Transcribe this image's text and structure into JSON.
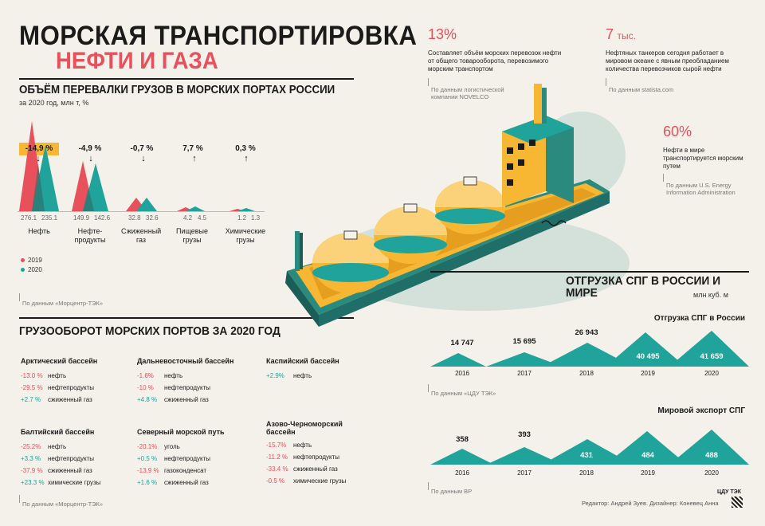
{
  "title": "МОРСКАЯ ТРАНСПОРТИРОВКА",
  "subtitle": "НЕФТИ И ГАЗА",
  "ports": {
    "heading": "ОБЪЁМ ПЕРЕВАЛКИ ГРУЗОВ В МОРСКИХ ПОРТАХ РОССИИ",
    "note": "за 2020 год, млн т, %",
    "groups": [
      {
        "name": "Нефть",
        "change": "-14,9 %",
        "arrow": "↓",
        "v2019": "276.1",
        "v2020": "235.1"
      },
      {
        "name": "Нефте-продукты",
        "change": "-4,9 %",
        "arrow": "↓",
        "v2019": "149.9",
        "v2020": "142.6"
      },
      {
        "name": "Сжиженный газ",
        "change": "-0,7 %",
        "arrow": "↓",
        "v2019": "32.8",
        "v2020": "32.6"
      },
      {
        "name": "Пищевые грузы",
        "change": "7,7 %",
        "arrow": "↑",
        "v2019": "4.2",
        "v2020": "4.5"
      },
      {
        "name": "Химические грузы",
        "change": "0,3 %",
        "arrow": "↑",
        "v2019": "1.2",
        "v2020": "1.3"
      }
    ],
    "legend_2019": "2019",
    "legend_2020": "2020",
    "source": "По данным «Морцентр-ТЭК»"
  },
  "colors": {
    "y2019": "#e8505b",
    "y2020": "#1fa39a",
    "accent": "#f7b733",
    "ship": "#f7b733"
  },
  "turnover": {
    "heading": "ГРУЗООБОРОТ МОРСКИХ ПОРТОВ ЗА 2020 ГОД",
    "basins": [
      {
        "name": "Арктический бассейн",
        "rows": [
          [
            "-13.0 %",
            "нефть"
          ],
          [
            "-29.5 %",
            "нефтепродукты"
          ],
          [
            "+2.7 %",
            "сжиженный газ"
          ]
        ]
      },
      {
        "name": "Дальневосточный бассейн",
        "rows": [
          [
            "-1.6%",
            "нефть"
          ],
          [
            "-10 %",
            "нефтепродукты"
          ],
          [
            "+4.8 %",
            "сжиженный газ"
          ]
        ]
      },
      {
        "name": "Каспийский бассейн",
        "rows": [
          [
            "+2.9%",
            "нефть"
          ]
        ]
      },
      {
        "name": "Балтийский бассейн",
        "rows": [
          [
            "-25.2%",
            "нефть"
          ],
          [
            "+3.3 %",
            "нефтепродукты"
          ],
          [
            "-37.9 %",
            "сжиженный газ"
          ],
          [
            "+23.3 %",
            "химические грузы"
          ]
        ]
      },
      {
        "name": "Северный морской путь",
        "rows": [
          [
            "-20.1%",
            "уголь"
          ],
          [
            "+0.5 %",
            "нефтепродукты"
          ],
          [
            "-13.9 %",
            "газоконденсат"
          ],
          [
            "+1.6 %",
            "сжиженный газ"
          ]
        ]
      },
      {
        "name": "Азово-Черноморский бассейн",
        "rows": [
          [
            "-15.7%",
            "нефть"
          ],
          [
            "-11.2 %",
            "нефтепродукты"
          ],
          [
            "-33.4 %",
            "сжиженный газ"
          ],
          [
            "-0.5 %",
            "химические грузы"
          ]
        ]
      }
    ],
    "source": "По данным «Морцентр-ТЭК»"
  },
  "facts": [
    {
      "value": "13%",
      "unit": "",
      "text": "Составляет объём морских перевозок нефти от общего товарооборота, перевозимого морским транспортом",
      "source": "По данным логистической компании NOVELCO"
    },
    {
      "value": "7",
      "unit": "тыс.",
      "text": "Нефтяных танкеров сегодня работает в мировом океане с явным преобладанием количества перевозчиков сырой нефти",
      "source": "По данным statista.com"
    },
    {
      "value": "60%",
      "unit": "",
      "text": "Нефти в мире транспортируется морским путем",
      "source": "По данным U.S. Energy Information Administration"
    }
  ],
  "lng": {
    "heading": "ОТГРУЗКА СПГ В РОССИИ И МИРЕ",
    "unit": "млн куб. м",
    "russia": {
      "title": "Отгрузка СПГ в России",
      "years": [
        "2016",
        "2017",
        "2018",
        "2019",
        "2020"
      ],
      "values": [
        "14 747",
        "15 695",
        "26 943",
        "40 495",
        "41 659"
      ],
      "source": "По данным «ЦДУ ТЭК»"
    },
    "world": {
      "title": "Мировой экспорт СПГ",
      "years": [
        "2016",
        "2017",
        "2018",
        "2019",
        "2020"
      ],
      "values": [
        "358",
        "393",
        "431",
        "484",
        "488"
      ],
      "source": "По данным BP"
    }
  },
  "credits": "Редактор: Андрей Зуев. Дизайнер: Коневец Анна",
  "logo_text": "ЦДУ ТЭК",
  "ship_icon": "lng-tanker-illustration"
}
